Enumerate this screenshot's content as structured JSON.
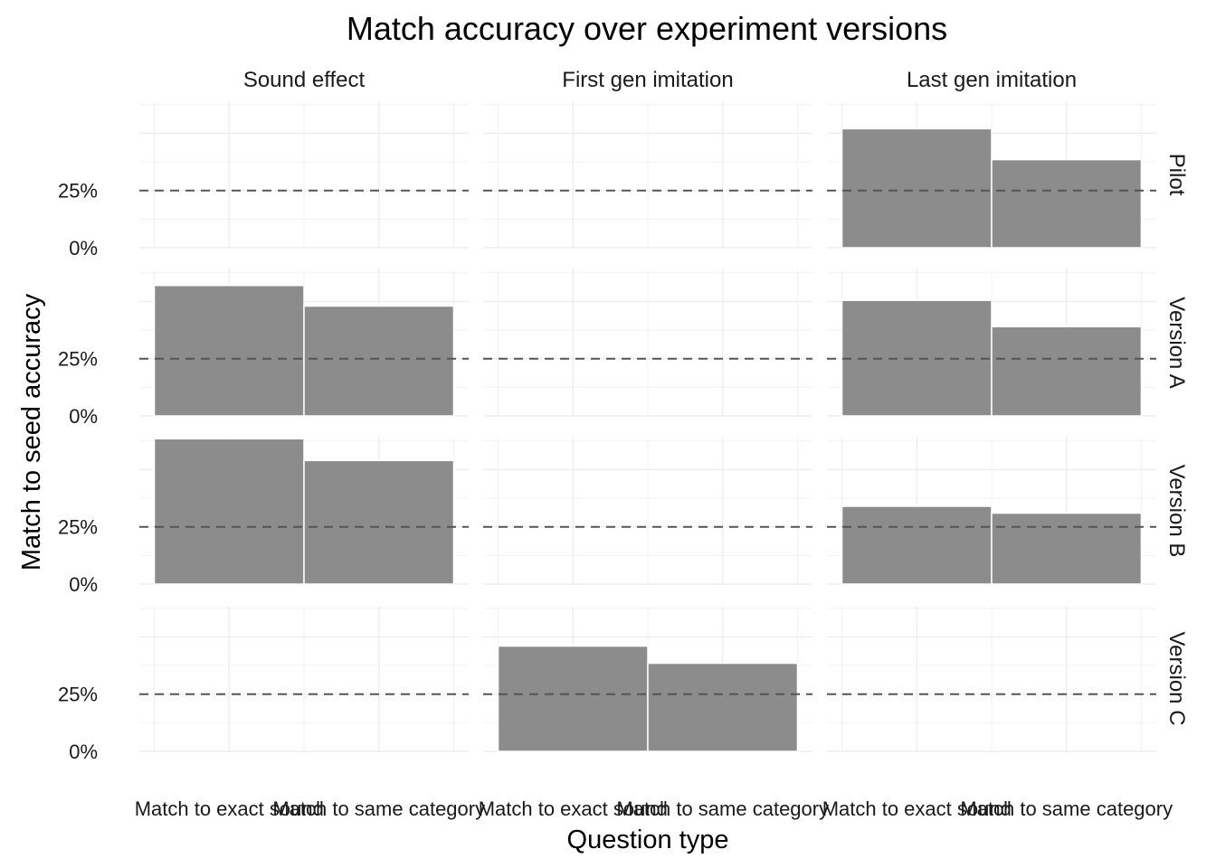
{
  "chart_data": {
    "type": "bar",
    "title": "Match accuracy over experiment versions",
    "xlabel": "Question type",
    "ylabel": "Match to seed accuracy",
    "categories": [
      "Match to exact sound",
      "Match to same category"
    ],
    "columns": [
      "Sound effect",
      "First gen imitation",
      "Last gen imitation"
    ],
    "rows": [
      "Pilot",
      "Version A",
      "Version B",
      "Version C"
    ],
    "ylim": [
      0,
      0.64
    ],
    "yticks": [
      0,
      0.25
    ],
    "ytick_labels": [
      "0%",
      "25%"
    ],
    "reference_line": 0.25,
    "bar_color": "#8c8c8c",
    "grid": true,
    "panels": [
      {
        "row": "Pilot",
        "column": "Sound effect",
        "values": []
      },
      {
        "row": "Pilot",
        "column": "First gen imitation",
        "values": []
      },
      {
        "row": "Pilot",
        "column": "Last gen imitation",
        "values": [
          0.52,
          0.385
        ]
      },
      {
        "row": "Version A",
        "column": "Sound effect",
        "values": [
          0.57,
          0.48
        ]
      },
      {
        "row": "Version A",
        "column": "First gen imitation",
        "values": []
      },
      {
        "row": "Version A",
        "column": "Last gen imitation",
        "values": [
          0.505,
          0.39
        ]
      },
      {
        "row": "Version B",
        "column": "Sound effect",
        "values": [
          0.635,
          0.54
        ]
      },
      {
        "row": "Version B",
        "column": "First gen imitation",
        "values": []
      },
      {
        "row": "Version B",
        "column": "Last gen imitation",
        "values": [
          0.34,
          0.31
        ]
      },
      {
        "row": "Version C",
        "column": "Sound effect",
        "values": []
      },
      {
        "row": "Version C",
        "column": "First gen imitation",
        "values": [
          0.46,
          0.385
        ]
      },
      {
        "row": "Version C",
        "column": "Last gen imitation",
        "values": []
      }
    ]
  }
}
